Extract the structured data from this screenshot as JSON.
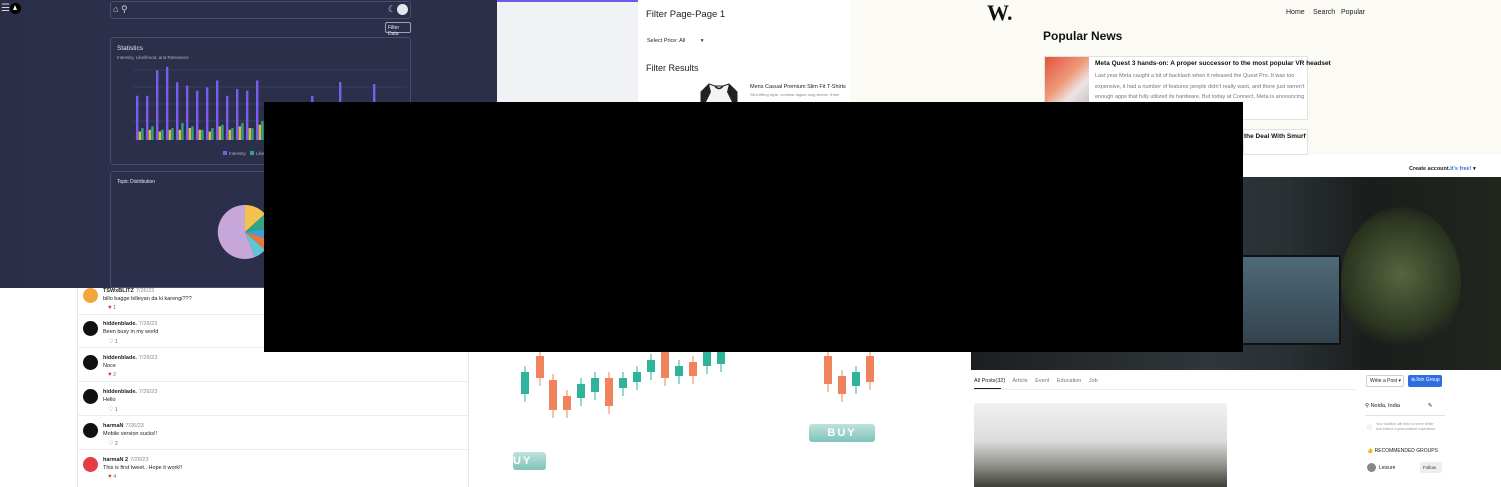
{
  "dashboard": {
    "filter_button": "Filter Data",
    "stats_title": "Statistics",
    "stats_subtitle": "Intensity, Likelihood, and Relevance",
    "legend": [
      "Intensity",
      "Likeli"
    ],
    "topic_title": "Topic Distribution",
    "colors": {
      "bg": "#2c2f4a",
      "bar1": "#7b5cf0",
      "bar2": "#e0b53a",
      "bar3": "#2fa588"
    }
  },
  "filter_page": {
    "title": "Filter Page-Page 1",
    "select_price": "Select Price: All",
    "results_title": "Filter Results",
    "product_name": "Mens Casual Premium Slim Fit T-Shirts",
    "product_desc": "Slim-fitting style, contrast raglan long sleeve, three"
  },
  "news": {
    "logo": "W.",
    "nav": [
      "Home",
      "Search",
      "Popular"
    ],
    "heading": "Popular News",
    "article_title": "Meta Quest 3 hands-on: A proper successor to the most popular VR headset",
    "article_body": "Last year Meta caught a bit of backlash when it released the Quest Pro. It was too expensive, it had a number of features people didn't really want, and there just weren't enough apps that fully utilized its hardware. But today at Connect, Meta is announcing ...",
    "article2_title": "the Deal With Smurf"
  },
  "photo": {
    "create_account": "Create account.",
    "its_free": "It's free!"
  },
  "comments": [
    {
      "name": "TSWxBLITZ",
      "date": "7/26/23",
      "text": "billo bagge billeyan da ki karengi???",
      "likes": "1",
      "liked": true,
      "avatar": "orange"
    },
    {
      "name": "hiddenblade.",
      "date": "7/26/23",
      "text": "Been busy in my world",
      "likes": "1",
      "liked": false,
      "avatar": "dark"
    },
    {
      "name": "hiddenblade.",
      "date": "7/26/23",
      "text": "Noce",
      "likes": "2",
      "liked": true,
      "avatar": "dark"
    },
    {
      "name": "hiddenblade.",
      "date": "7/26/23",
      "text": "Hello",
      "likes": "1",
      "liked": false,
      "avatar": "dark"
    },
    {
      "name": "harmaN",
      "date": "7/26/23",
      "text": "Mobile version sucks!!",
      "likes": "2",
      "liked": false,
      "avatar": "dark"
    },
    {
      "name": "harmaN 2",
      "date": "7/26/23",
      "text": "This is first tweet.. Hope it work!!",
      "likes": "4",
      "liked": true,
      "avatar": "red"
    }
  ],
  "trading": {
    "buy_label": "BUY",
    "buy_label_left": "UY",
    "colors": {
      "up": "#2fb39a",
      "down": "#f0835d"
    }
  },
  "community": {
    "tabs": [
      "All Posts(32)",
      "Article",
      "Event",
      "Education",
      "Job"
    ],
    "write_post": "Write a Post",
    "join_group": "Join Group",
    "location": "Noida, India",
    "location_hint": "Your location will help us serve better and extend a personalised experience.",
    "recommended": "RECOMMENDED GROUPS",
    "group_name": "Leisure",
    "follow": "Follow"
  }
}
